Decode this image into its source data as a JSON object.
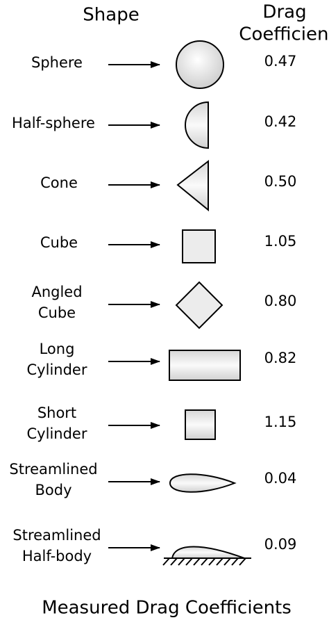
{
  "header": {
    "shape": "Shape",
    "coefficient": [
      "Drag",
      "Coefficient"
    ]
  },
  "rows": [
    {
      "name": [
        "Sphere"
      ],
      "value": "0.47"
    },
    {
      "name": [
        "Half-sphere"
      ],
      "value": "0.42"
    },
    {
      "name": [
        "Cone"
      ],
      "value": "0.50"
    },
    {
      "name": [
        "Cube"
      ],
      "value": "1.05"
    },
    {
      "name": [
        "Angled",
        "Cube"
      ],
      "value": "0.80"
    },
    {
      "name": [
        "Long",
        "Cylinder"
      ],
      "value": "0.82"
    },
    {
      "name": [
        "Short",
        "Cylinder"
      ],
      "value": "1.15"
    },
    {
      "name": [
        "Streamlined",
        "Body"
      ],
      "value": "0.04"
    },
    {
      "name": [
        "Streamlined",
        "Half-body"
      ],
      "value": "0.09"
    }
  ],
  "footer": "Measured Drag Coefficients"
}
